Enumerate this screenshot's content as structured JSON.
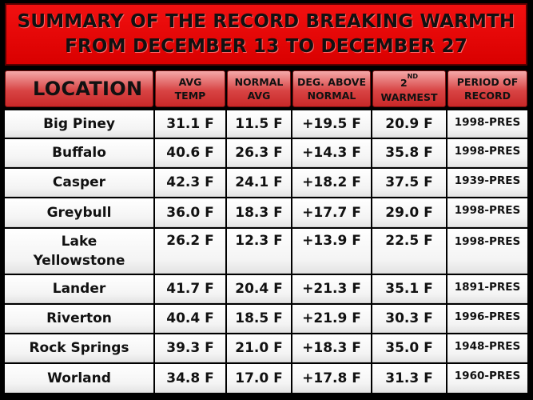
{
  "title": {
    "line1": "SUMMARY OF THE RECORD BREAKING WARMTH",
    "line2": "FROM DECEMBER 13 TO DECEMBER 27"
  },
  "headers": {
    "location": "LOCATION",
    "avg_temp_1": "AVG",
    "avg_temp_2": "TEMP",
    "normal_1": "NORMAL",
    "normal_2": "AVG",
    "deg_1": "DEG. ABOVE",
    "deg_2": "NORMAL",
    "warmest_num": "2",
    "warmest_sup": "ND",
    "warmest_2": "WARMEST",
    "period_1": "PERIOD OF",
    "period_2": "RECORD"
  },
  "rows": [
    {
      "location": "Big Piney",
      "avg": "31.1 F",
      "normal": "11.5 F",
      "above": "+19.5 F",
      "second": "20.9 F",
      "period": "1998-PRES"
    },
    {
      "location": "Buffalo",
      "avg": "40.6 F",
      "normal": "26.3 F",
      "above": "+14.3 F",
      "second": "35.8 F",
      "period": "1998-PRES"
    },
    {
      "location": "Casper",
      "avg": "42.3 F",
      "normal": "24.1 F",
      "above": "+18.2 F",
      "second": "37.5 F",
      "period": "1939-PRES"
    },
    {
      "location": "Greybull",
      "avg": "36.0 F",
      "normal": "18.3 F",
      "above": "+17.7 F",
      "second": "29.0 F",
      "period": "1998-PRES"
    },
    {
      "location_1": "Lake",
      "location_2": "Yellowstone",
      "avg": "26.2 F",
      "normal": "12.3 F",
      "above": "+13.9 F",
      "second": "22.5 F",
      "period": "1998-PRES"
    },
    {
      "location": "Lander",
      "avg": "41.7 F",
      "normal": "20.4 F",
      "above": "+21.3 F",
      "second": "35.1 F",
      "period": "1891-PRES"
    },
    {
      "location": "Riverton",
      "avg": "40.4 F",
      "normal": "18.5 F",
      "above": "+21.9 F",
      "second": "30.3 F",
      "period": "1996-PRES"
    },
    {
      "location": "Rock Springs",
      "avg": "39.3 F",
      "normal": "21.0 F",
      "above": "+18.3 F",
      "second": "35.0 F",
      "period": "1948-PRES"
    },
    {
      "location": "Worland",
      "avg": "34.8 F",
      "normal": "17.0 F",
      "above": "+17.8 F",
      "second": "31.3 F",
      "period": "1960-PRES"
    }
  ]
}
